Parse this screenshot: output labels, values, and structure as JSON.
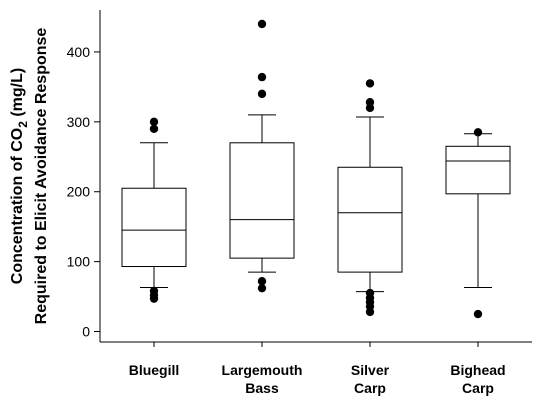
{
  "chart_data": {
    "type": "box",
    "ylabel_line1_prefix": "Concentration of CO",
    "ylabel_line1_sub": "2",
    "ylabel_line1_suffix": " (mg/L)",
    "ylabel_line2": "Required to Elicit Avoidance Response",
    "ylim": [
      -15,
      460
    ],
    "yticks": [
      0,
      100,
      200,
      300,
      400
    ],
    "categories": [
      {
        "line1": "Bluegill",
        "line2": ""
      },
      {
        "line1": "Largemouth",
        "line2": "Bass"
      },
      {
        "line1": "Silver",
        "line2": "Carp"
      },
      {
        "line1": "Bighead",
        "line2": "Carp"
      }
    ],
    "boxes": [
      {
        "whisker_low": 63,
        "q1": 93,
        "median": 145,
        "q3": 205,
        "whisker_high": 270,
        "outliers": [
          47,
          52,
          58,
          290,
          300
        ]
      },
      {
        "whisker_low": 85,
        "q1": 105,
        "median": 160,
        "q3": 270,
        "whisker_high": 310,
        "outliers": [
          62,
          72,
          340,
          364,
          440
        ]
      },
      {
        "whisker_low": 57,
        "q1": 85,
        "median": 170,
        "q3": 235,
        "whisker_high": 307,
        "outliers": [
          28,
          36,
          42,
          48,
          55,
          320,
          328,
          355
        ]
      },
      {
        "whisker_low": 63,
        "q1": 197,
        "median": 244,
        "q3": 265,
        "whisker_high": 283,
        "outliers": [
          25,
          285
        ]
      }
    ]
  }
}
